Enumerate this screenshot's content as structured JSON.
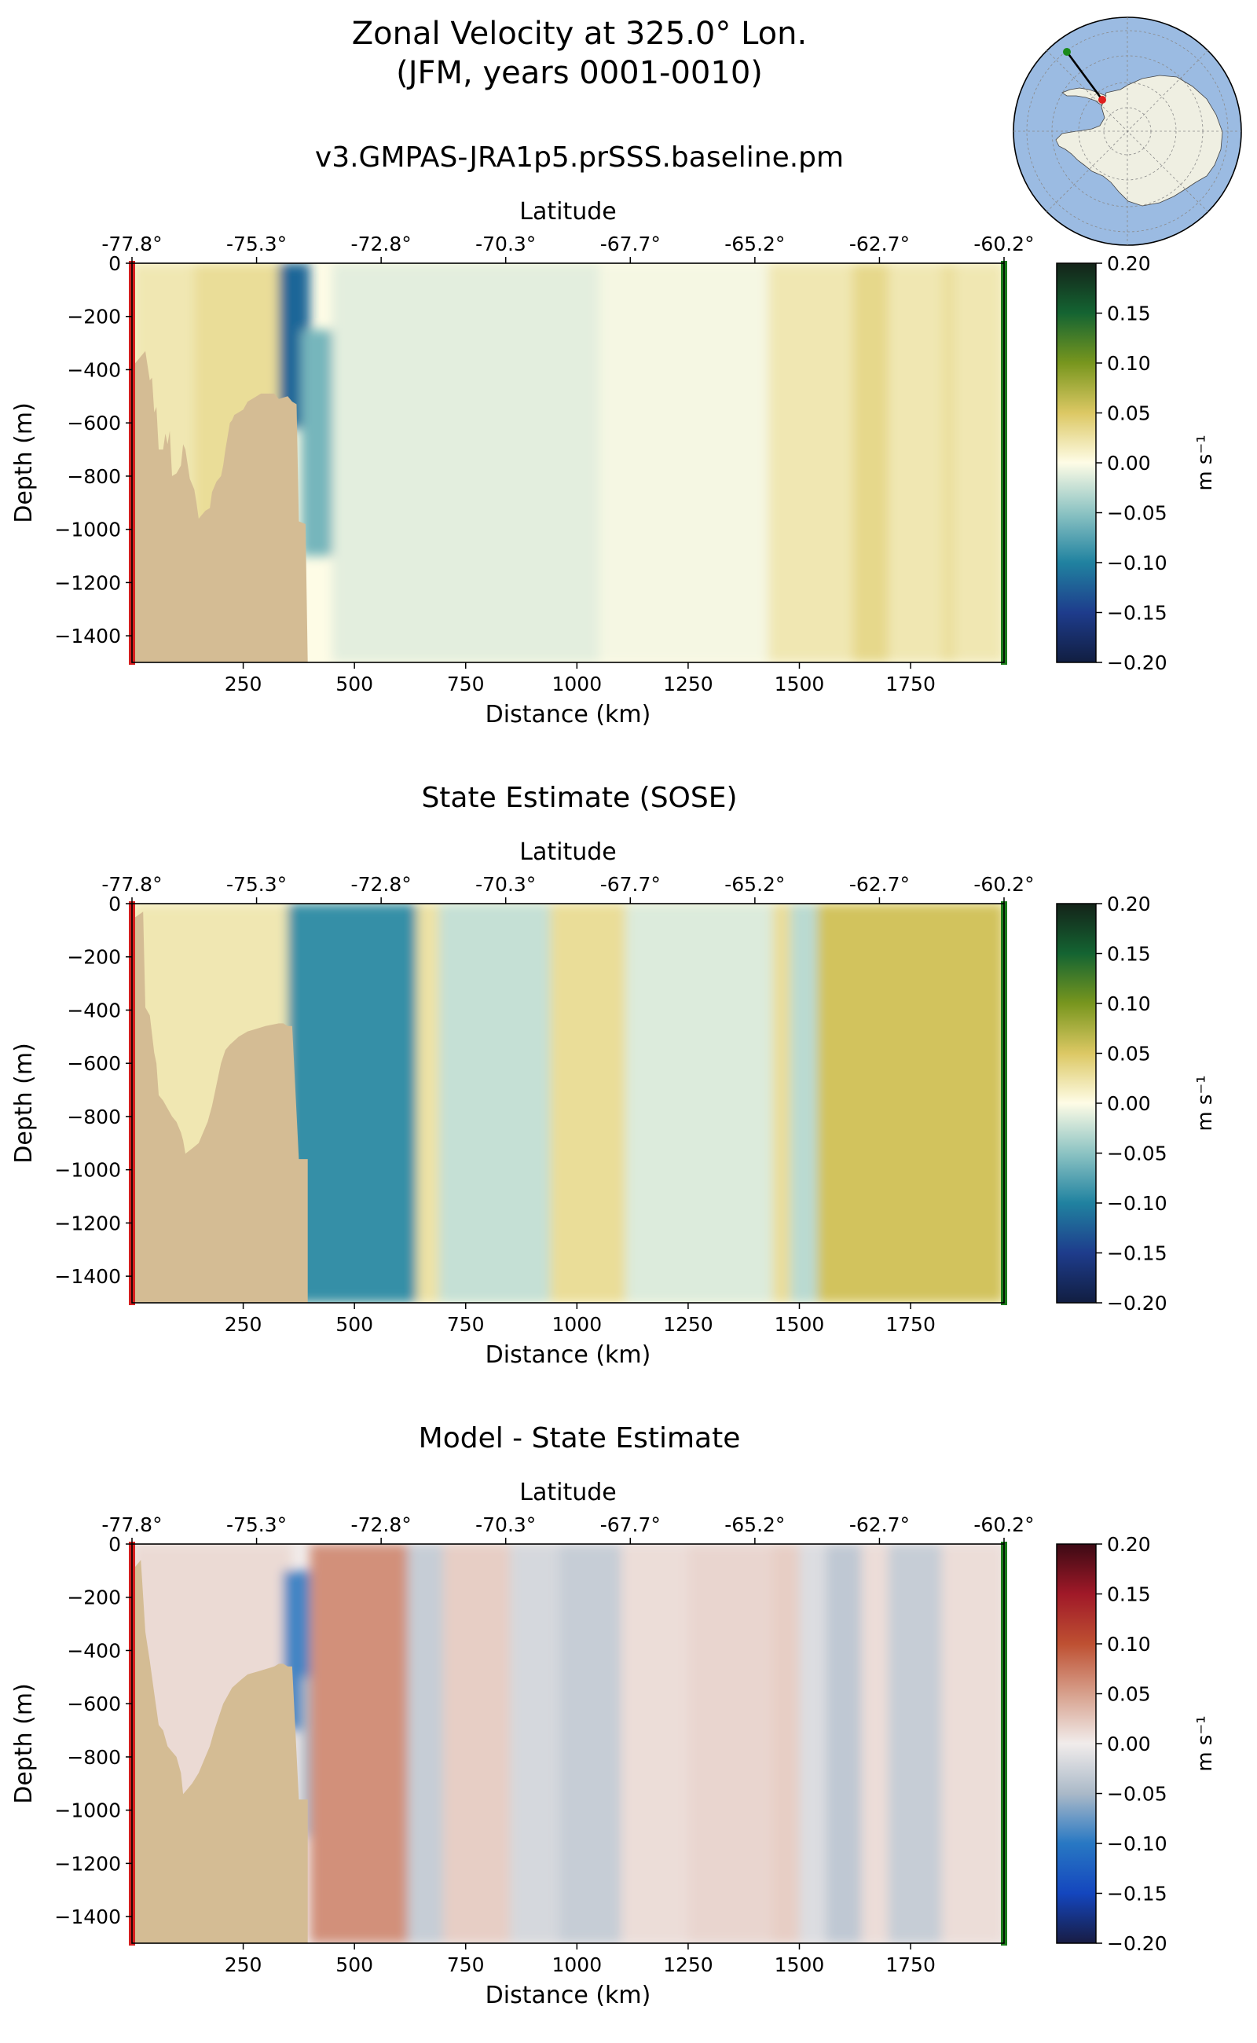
{
  "title_line1": "Zonal Velocity at 325.0° Lon.",
  "title_line2": "(JFM, years 0001-0010)",
  "colors": {
    "land": "#d4bc94",
    "start_marker": "#d62020",
    "end_marker": "#1a7a1a",
    "map_ocean": "#9bbbe2",
    "map_land": "#efefe2",
    "map_grid": "#8a8a8a"
  },
  "inset_map": {
    "projection": "south-polar-stereographic",
    "transect_start": "green",
    "transect_end": "red"
  },
  "chart_data": [
    {
      "type": "heatmap",
      "title": "v3.GMPAS-JRA1p5.prSSS.baseline.pm",
      "xlabel": "Distance (km)",
      "ylabel": "Depth (m)",
      "top_xlabel": "Latitude",
      "xlim": [
        0,
        1960
      ],
      "ylim": [
        -1500,
        0
      ],
      "xticks": [
        250,
        500,
        750,
        1000,
        1250,
        1500,
        1750
      ],
      "xtick_labels": [
        "250",
        "500",
        "750",
        "1000",
        "1250",
        "1500",
        "1750"
      ],
      "yticks": [
        0,
        -200,
        -400,
        -600,
        -800,
        -1000,
        -1200,
        -1400
      ],
      "ytick_labels": [
        "0",
        "−200",
        "−400",
        "−600",
        "−800",
        "−1000",
        "−1200",
        "−1400"
      ],
      "lat_ticks_km": [
        0,
        280,
        560,
        840,
        1120,
        1400,
        1680,
        1960
      ],
      "lat_tick_labels": [
        "-77.8°",
        "-75.3°",
        "-72.8°",
        "-70.3°",
        "-67.7°",
        "-65.2°",
        "-62.7°",
        "-60.2°"
      ],
      "colorbar": {
        "colormap": "delta",
        "min": -0.2,
        "max": 0.2,
        "ticks": [
          0.2,
          0.15,
          0.1,
          0.05,
          0.0,
          -0.05,
          -0.1,
          -0.15,
          -0.2
        ],
        "tick_labels": [
          "0.20",
          "0.15",
          "0.10",
          "0.05",
          "0.00",
          "−0.05",
          "−0.10",
          "−0.15",
          "−0.20"
        ],
        "label": "m s⁻¹"
      },
      "bathymetry": [
        [
          0,
          -1500
        ],
        [
          0,
          -390
        ],
        [
          30,
          -330
        ],
        [
          40,
          -440
        ],
        [
          45,
          -430
        ],
        [
          50,
          -560
        ],
        [
          55,
          -540
        ],
        [
          60,
          -700
        ],
        [
          70,
          -700
        ],
        [
          75,
          -640
        ],
        [
          80,
          -680
        ],
        [
          85,
          -630
        ],
        [
          90,
          -800
        ],
        [
          100,
          -790
        ],
        [
          110,
          -760
        ],
        [
          115,
          -680
        ],
        [
          120,
          -700
        ],
        [
          130,
          -810
        ],
        [
          140,
          -850
        ],
        [
          145,
          -900
        ],
        [
          150,
          -960
        ],
        [
          165,
          -930
        ],
        [
          175,
          -920
        ],
        [
          180,
          -860
        ],
        [
          190,
          -820
        ],
        [
          200,
          -800
        ],
        [
          205,
          -760
        ],
        [
          210,
          -700
        ],
        [
          215,
          -650
        ],
        [
          220,
          -600
        ],
        [
          225,
          -590
        ],
        [
          230,
          -570
        ],
        [
          240,
          -560
        ],
        [
          250,
          -550
        ],
        [
          260,
          -520
        ],
        [
          270,
          -510
        ],
        [
          280,
          -500
        ],
        [
          290,
          -490
        ],
        [
          300,
          -490
        ],
        [
          320,
          -490
        ],
        [
          330,
          -510
        ],
        [
          350,
          -500
        ],
        [
          360,
          -520
        ],
        [
          370,
          -530
        ],
        [
          375,
          -970
        ],
        [
          390,
          -980
        ],
        [
          395,
          -1500
        ]
      ],
      "field": [
        {
          "x": [
            0,
            140
          ],
          "z": [
            0,
            -1500
          ],
          "v": 0.02
        },
        {
          "x": [
            140,
            350
          ],
          "z": [
            0,
            -1500
          ],
          "v": 0.03
        },
        {
          "x": [
            330,
            400
          ],
          "z": [
            0,
            -620
          ],
          "v": -0.12
        },
        {
          "x": [
            380,
            460
          ],
          "z": [
            -250,
            -1100
          ],
          "v": -0.06
        },
        {
          "x": [
            450,
            1050
          ],
          "z": [
            0,
            -1500
          ],
          "v": -0.012
        },
        {
          "x": [
            1050,
            1430
          ],
          "z": [
            0,
            -1500
          ],
          "v": -0.004
        },
        {
          "x": [
            1430,
            1960
          ],
          "z": [
            0,
            -1500
          ],
          "v": 0.02
        },
        {
          "x": [
            1620,
            1700
          ],
          "z": [
            0,
            -1500
          ],
          "v": 0.035
        },
        {
          "x": [
            1820,
            1850
          ],
          "z": [
            0,
            -1500
          ],
          "v": 0.028
        }
      ]
    },
    {
      "type": "heatmap",
      "title": "State Estimate (SOSE)",
      "xlabel": "Distance (km)",
      "ylabel": "Depth (m)",
      "top_xlabel": "Latitude",
      "xlim": [
        0,
        1960
      ],
      "ylim": [
        -1500,
        0
      ],
      "xticks": [
        250,
        500,
        750,
        1000,
        1250,
        1500,
        1750
      ],
      "xtick_labels": [
        "250",
        "500",
        "750",
        "1000",
        "1250",
        "1500",
        "1750"
      ],
      "yticks": [
        0,
        -200,
        -400,
        -600,
        -800,
        -1000,
        -1200,
        -1400
      ],
      "ytick_labels": [
        "0",
        "−200",
        "−400",
        "−600",
        "−800",
        "−1000",
        "−1200",
        "−1400"
      ],
      "lat_ticks_km": [
        0,
        280,
        560,
        840,
        1120,
        1400,
        1680,
        1960
      ],
      "lat_tick_labels": [
        "-77.8°",
        "-75.3°",
        "-72.8°",
        "-70.3°",
        "-67.7°",
        "-65.2°",
        "-62.7°",
        "-60.2°"
      ],
      "colorbar": {
        "colormap": "delta",
        "min": -0.2,
        "max": 0.2,
        "ticks": [
          0.2,
          0.15,
          0.1,
          0.05,
          0.0,
          -0.05,
          -0.1,
          -0.15,
          -0.2
        ],
        "tick_labels": [
          "0.20",
          "0.15",
          "0.10",
          "0.05",
          "0.00",
          "−0.05",
          "−0.10",
          "−0.15",
          "−0.20"
        ],
        "label": "m s⁻¹"
      },
      "bathymetry": [
        [
          0,
          -1500
        ],
        [
          0,
          -60
        ],
        [
          25,
          -30
        ],
        [
          30,
          -390
        ],
        [
          40,
          -420
        ],
        [
          50,
          -560
        ],
        [
          55,
          -600
        ],
        [
          60,
          -720
        ],
        [
          70,
          -740
        ],
        [
          80,
          -770
        ],
        [
          90,
          -800
        ],
        [
          100,
          -820
        ],
        [
          110,
          -860
        ],
        [
          115,
          -890
        ],
        [
          120,
          -940
        ],
        [
          135,
          -920
        ],
        [
          150,
          -900
        ],
        [
          170,
          -820
        ],
        [
          180,
          -760
        ],
        [
          190,
          -680
        ],
        [
          200,
          -600
        ],
        [
          210,
          -550
        ],
        [
          220,
          -530
        ],
        [
          240,
          -500
        ],
        [
          260,
          -480
        ],
        [
          280,
          -470
        ],
        [
          300,
          -460
        ],
        [
          330,
          -450
        ],
        [
          340,
          -450
        ],
        [
          350,
          -460
        ],
        [
          360,
          -460
        ],
        [
          375,
          -960
        ],
        [
          395,
          -960
        ],
        [
          395,
          -1500
        ]
      ],
      "field": [
        {
          "x": [
            0,
            360
          ],
          "z": [
            0,
            -1500
          ],
          "v": 0.02
        },
        {
          "x": [
            350,
            640
          ],
          "z": [
            0,
            -1500
          ],
          "v": -0.09
        },
        {
          "x": [
            640,
            690
          ],
          "z": [
            0,
            -1500
          ],
          "v": 0.025
        },
        {
          "x": [
            690,
            940
          ],
          "z": [
            0,
            -1500
          ],
          "v": -0.025
        },
        {
          "x": [
            940,
            1110
          ],
          "z": [
            0,
            -1500
          ],
          "v": 0.03
        },
        {
          "x": [
            1110,
            1440
          ],
          "z": [
            0,
            -1500
          ],
          "v": -0.015
        },
        {
          "x": [
            1440,
            1480
          ],
          "z": [
            0,
            -1500
          ],
          "v": 0.03
        },
        {
          "x": [
            1480,
            1540
          ],
          "z": [
            0,
            -1500
          ],
          "v": -0.03
        },
        {
          "x": [
            1540,
            1960
          ],
          "z": [
            0,
            -1500
          ],
          "v": 0.055
        }
      ]
    },
    {
      "type": "heatmap",
      "title": "Model - State Estimate",
      "xlabel": "Distance (km)",
      "ylabel": "Depth (m)",
      "top_xlabel": "Latitude",
      "xlim": [
        0,
        1960
      ],
      "ylim": [
        -1500,
        0
      ],
      "xticks": [
        250,
        500,
        750,
        1000,
        1250,
        1500,
        1750
      ],
      "xtick_labels": [
        "250",
        "500",
        "750",
        "1000",
        "1250",
        "1500",
        "1750"
      ],
      "yticks": [
        0,
        -200,
        -400,
        -600,
        -800,
        -1000,
        -1200,
        -1400
      ],
      "ytick_labels": [
        "0",
        "−200",
        "−400",
        "−600",
        "−800",
        "−1000",
        "−1200",
        "−1400"
      ],
      "lat_ticks_km": [
        0,
        280,
        560,
        840,
        1120,
        1400,
        1680,
        1960
      ],
      "lat_tick_labels": [
        "-77.8°",
        "-75.3°",
        "-72.8°",
        "-70.3°",
        "-67.7°",
        "-65.2°",
        "-62.7°",
        "-60.2°"
      ],
      "colorbar": {
        "colormap": "balance",
        "min": -0.2,
        "max": 0.2,
        "ticks": [
          0.2,
          0.15,
          0.1,
          0.05,
          0.0,
          -0.05,
          -0.1,
          -0.15,
          -0.2
        ],
        "tick_labels": [
          "0.20",
          "0.15",
          "0.10",
          "0.05",
          "0.00",
          "−0.05",
          "−0.10",
          "−0.15",
          "−0.20"
        ],
        "label": "m s⁻¹"
      },
      "bathymetry": [
        [
          0,
          -1500
        ],
        [
          0,
          -100
        ],
        [
          20,
          -60
        ],
        [
          30,
          -330
        ],
        [
          40,
          -440
        ],
        [
          50,
          -560
        ],
        [
          60,
          -680
        ],
        [
          70,
          -700
        ],
        [
          80,
          -760
        ],
        [
          90,
          -780
        ],
        [
          100,
          -800
        ],
        [
          110,
          -860
        ],
        [
          115,
          -940
        ],
        [
          125,
          -920
        ],
        [
          135,
          -900
        ],
        [
          150,
          -860
        ],
        [
          165,
          -800
        ],
        [
          175,
          -760
        ],
        [
          185,
          -700
        ],
        [
          195,
          -650
        ],
        [
          205,
          -600
        ],
        [
          215,
          -570
        ],
        [
          225,
          -540
        ],
        [
          245,
          -510
        ],
        [
          260,
          -490
        ],
        [
          280,
          -480
        ],
        [
          300,
          -470
        ],
        [
          320,
          -460
        ],
        [
          330,
          -450
        ],
        [
          340,
          -450
        ],
        [
          350,
          -460
        ],
        [
          360,
          -460
        ],
        [
          375,
          -960
        ],
        [
          395,
          -960
        ],
        [
          395,
          -1500
        ]
      ],
      "field": [
        {
          "x": [
            0,
            360
          ],
          "z": [
            0,
            -1500
          ],
          "v": 0.012
        },
        {
          "x": [
            340,
            400
          ],
          "z": [
            -100,
            -700
          ],
          "v": -0.09
        },
        {
          "x": [
            380,
            460
          ],
          "z": [
            -500,
            -1100
          ],
          "v": -0.05
        },
        {
          "x": [
            400,
            620
          ],
          "z": [
            0,
            -1500
          ],
          "v": 0.06
        },
        {
          "x": [
            620,
            700
          ],
          "z": [
            0,
            -1500
          ],
          "v": -0.03
        },
        {
          "x": [
            700,
            850
          ],
          "z": [
            0,
            -1500
          ],
          "v": 0.02
        },
        {
          "x": [
            850,
            960
          ],
          "z": [
            0,
            -1500
          ],
          "v": -0.02
        },
        {
          "x": [
            960,
            1100
          ],
          "z": [
            0,
            -1500
          ],
          "v": -0.03
        },
        {
          "x": [
            1100,
            1250
          ],
          "z": [
            0,
            -1500
          ],
          "v": 0.01
        },
        {
          "x": [
            1250,
            1440
          ],
          "z": [
            0,
            -1500
          ],
          "v": 0.015
        },
        {
          "x": [
            1440,
            1500
          ],
          "z": [
            0,
            -1500
          ],
          "v": 0.02
        },
        {
          "x": [
            1500,
            1560
          ],
          "z": [
            0,
            -1500
          ],
          "v": -0.015
        },
        {
          "x": [
            1560,
            1640
          ],
          "z": [
            0,
            -1500
          ],
          "v": -0.035
        },
        {
          "x": [
            1640,
            1700
          ],
          "z": [
            0,
            -1500
          ],
          "v": 0.01
        },
        {
          "x": [
            1700,
            1820
          ],
          "z": [
            0,
            -1500
          ],
          "v": -0.03
        },
        {
          "x": [
            1820,
            1960
          ],
          "z": [
            0,
            -1500
          ],
          "v": 0.01
        }
      ]
    }
  ]
}
